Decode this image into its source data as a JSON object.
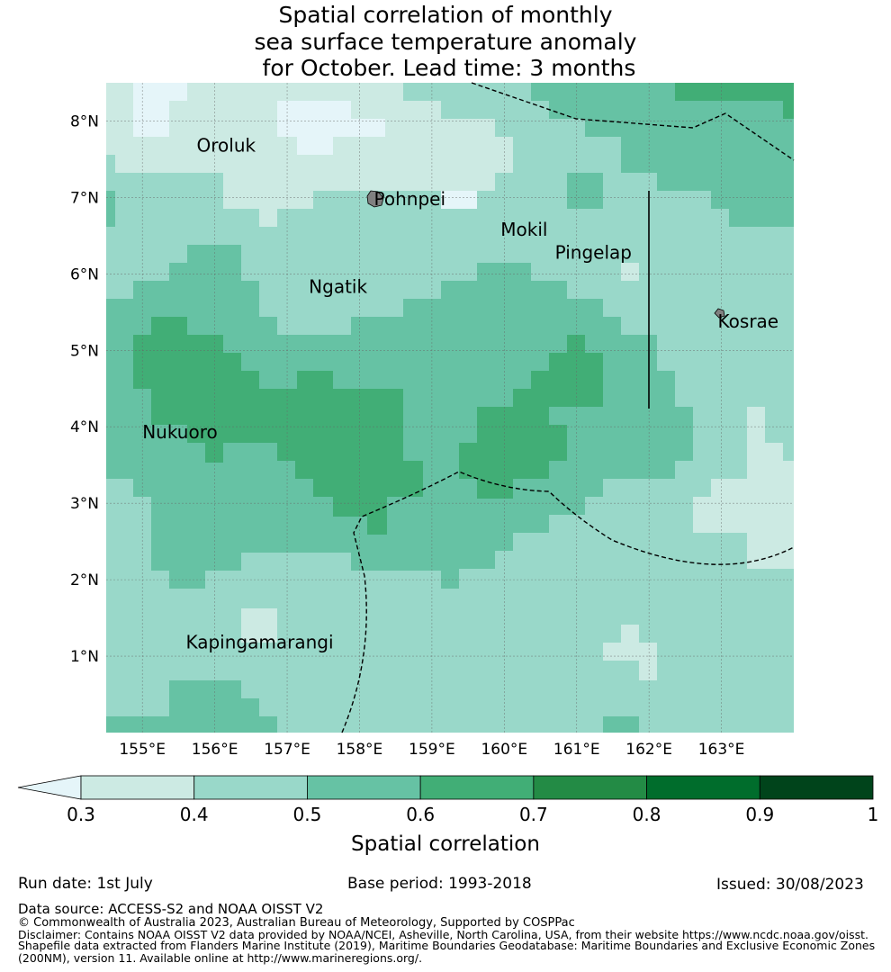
{
  "title": {
    "lines": [
      "Spatial correlation of monthly",
      "sea surface temperature anomaly",
      " for October. Lead time: 3 months"
    ]
  },
  "map": {
    "lon_ticks": [
      "155°E",
      "156°E",
      "157°E",
      "158°E",
      "159°E",
      "160°E",
      "161°E",
      "162°E",
      "163°E"
    ],
    "lat_ticks": [
      "8°N",
      "7°N",
      "6°N",
      "5°N",
      "4°N",
      "3°N",
      "2°N",
      "1°N"
    ],
    "lon_range": [
      154.5,
      164.0
    ],
    "lat_range": [
      0.0,
      8.5
    ],
    "grid": true,
    "places": [
      {
        "name": "Oroluk",
        "lon": 155.75,
        "lat": 7.6
      },
      {
        "name": "Pohnpei",
        "lon": 158.2,
        "lat": 6.9
      },
      {
        "name": "Mokil",
        "lon": 159.95,
        "lat": 6.5
      },
      {
        "name": "Pingelap",
        "lon": 160.7,
        "lat": 6.2
      },
      {
        "name": "Ngatik",
        "lon": 157.3,
        "lat": 5.75
      },
      {
        "name": "Kosrae",
        "lon": 162.95,
        "lat": 5.3
      },
      {
        "name": "Nukuoro",
        "lon": 155.0,
        "lat": 3.85
      },
      {
        "name": "Kapingamarangi",
        "lon": 155.6,
        "lat": 1.1
      }
    ]
  },
  "colorbar": {
    "label": "Spatial correlation",
    "ticks": [
      "0.3",
      "0.4",
      "0.5",
      "0.6",
      "0.7",
      "0.8",
      "0.9",
      "1"
    ],
    "colors": [
      "#cceae3",
      "#99d8c9",
      "#66c2a4",
      "#41ae76",
      "#238b45",
      "#006d2c",
      "#00441b"
    ],
    "under_color": "#e5f5f9"
  },
  "chart_data": {
    "type": "heatmap",
    "title": "Spatial correlation of monthly sea surface temperature anomaly for October. Lead time: 3 months",
    "x_range": [
      154.5,
      164.0
    ],
    "y_range": [
      0.0,
      8.5
    ],
    "levels": [
      0.3,
      0.4,
      0.5,
      0.6,
      0.7,
      0.8,
      0.9,
      1.0
    ],
    "regions_by_level": {
      "below 0.3": [
        "around 155°E 8°N",
        "157°E-158.5°E 7.5°N-8°N"
      ],
      "0.3-0.4": [
        "northwest sector 155°E-160°E 7°N-8.5°N",
        "southeast 162.5°E-164°E 2°N-3°N",
        "near 161.5°E 0.8°N"
      ],
      "0.4-0.5": [
        "background across most of domain"
      ],
      "0.5-0.6": [
        "central band 155°E-162°E 2°N-6°N",
        "northeast 161°E-164°E 6.5°N-8.3°N"
      ],
      "0.6-0.7": [
        "155°E-159°E 3°N-5°N",
        "160°E-161°E 2.6°N-4°N",
        "161°E-162°E 4°N-5°N",
        "163°E-164°E 8.3°N-8.5°N"
      ]
    }
  },
  "footer": {
    "run_date": "Run date: 1st July",
    "base_period": "Base period: 1993-2018",
    "issued": "Issued: 30/08/2023",
    "data_source": "Data source: ACCESS-S2 and NOAA OISST V2",
    "copyright": "© Commonwealth of Australia 2023, Australian Bureau of Meteorology, Supported by COSPPac",
    "disclaimer_1": "Disclaimer: Contains NOAA OISST V2 data provided by NOAA/NCEI, Asheville, North Carolina, USA, from their website https://www.ncdc.noaa.gov/oisst.",
    "disclaimer_2": "Shapefile data extracted from Flanders Marine Institute (2019), Maritime Boundaries Geodatabase: Maritime Boundaries and Exclusive Economic Zones",
    "disclaimer_3": "(200NM), version 11. Available online at http://www.marineregions.org/."
  }
}
